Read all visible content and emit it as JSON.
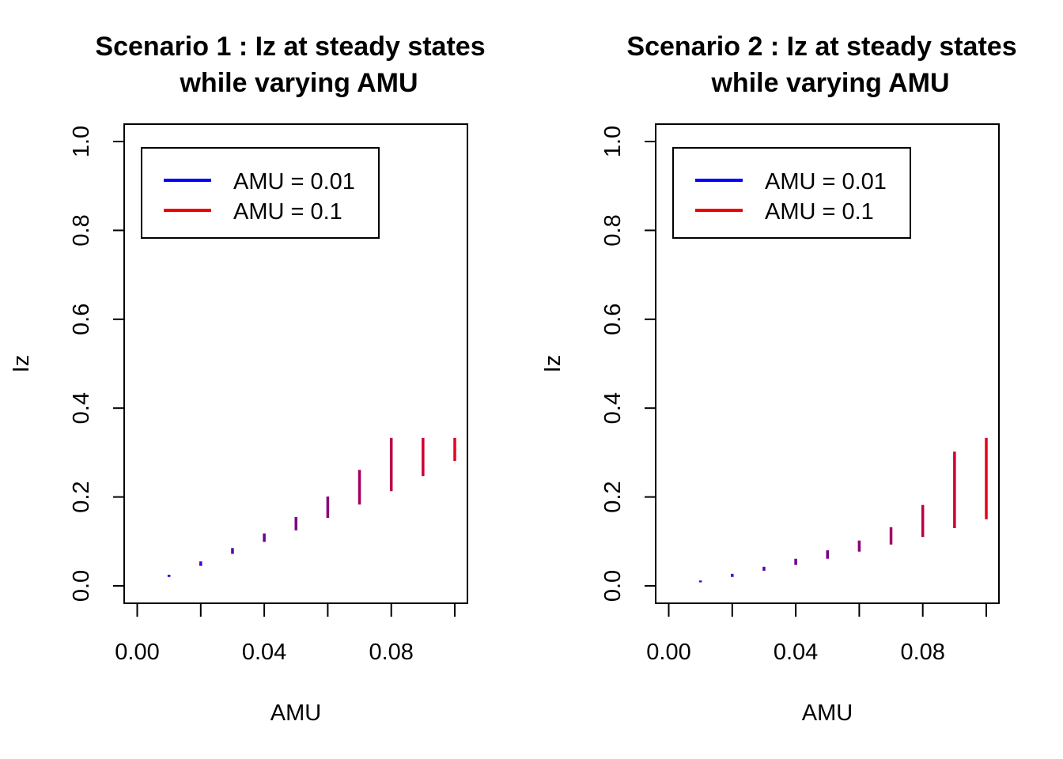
{
  "chart_data": [
    {
      "type": "line",
      "title_line1": "Scenario 1 : Iz at steady states",
      "title_line2": "while varying AMU",
      "xlabel": "AMU",
      "ylabel": "Iz",
      "xlim": [
        0,
        0.1
      ],
      "ylim": [
        0,
        1
      ],
      "xticks": [
        "0.00",
        "0.04",
        "0.08"
      ],
      "xtick_values": [
        0,
        0.02,
        0.04,
        0.06,
        0.08,
        0.1
      ],
      "yticks": [
        "0.0",
        "0.2",
        "0.4",
        "0.6",
        "0.8",
        "1.0"
      ],
      "legend": [
        {
          "label": "AMU = 0.01",
          "color": "#0000ff"
        },
        {
          "label": "AMU = 0.1",
          "color": "#ee0000"
        }
      ],
      "legend_position": "top-left",
      "segments": [
        {
          "x": 0.01,
          "ymin": 0.02,
          "ymax": 0.025,
          "color": "#2200ee"
        },
        {
          "x": 0.02,
          "ymin": 0.045,
          "ymax": 0.055,
          "color": "#4400dd"
        },
        {
          "x": 0.03,
          "ymin": 0.072,
          "ymax": 0.085,
          "color": "#5a00b0"
        },
        {
          "x": 0.04,
          "ymin": 0.099,
          "ymax": 0.118,
          "color": "#6a0098"
        },
        {
          "x": 0.05,
          "ymin": 0.125,
          "ymax": 0.155,
          "color": "#7a0088"
        },
        {
          "x": 0.06,
          "ymin": 0.153,
          "ymax": 0.201,
          "color": "#8c0078"
        },
        {
          "x": 0.07,
          "ymin": 0.183,
          "ymax": 0.261,
          "color": "#a30060"
        },
        {
          "x": 0.08,
          "ymin": 0.213,
          "ymax": 0.333,
          "color": "#bb0048"
        },
        {
          "x": 0.09,
          "ymin": 0.247,
          "ymax": 0.333,
          "color": "#d00034"
        },
        {
          "x": 0.1,
          "ymin": 0.281,
          "ymax": 0.333,
          "color": "#e6001e"
        }
      ]
    },
    {
      "type": "line",
      "title_line1": "Scenario 2 : Iz at steady states",
      "title_line2": "while varying AMU",
      "xlabel": "AMU",
      "ylabel": "Iz",
      "xlim": [
        0,
        0.1
      ],
      "ylim": [
        0,
        1
      ],
      "xticks": [
        "0.00",
        "0.04",
        "0.08"
      ],
      "xtick_values": [
        0,
        0.02,
        0.04,
        0.06,
        0.08,
        0.1
      ],
      "yticks": [
        "0.0",
        "0.2",
        "0.4",
        "0.6",
        "0.8",
        "1.0"
      ],
      "legend": [
        {
          "label": "AMU = 0.01",
          "color": "#0000ff"
        },
        {
          "label": "AMU = 0.1",
          "color": "#ee0000"
        }
      ],
      "legend_position": "top-left",
      "segments": [
        {
          "x": 0.01,
          "ymin": 0.008,
          "ymax": 0.012,
          "color": "#2200ee"
        },
        {
          "x": 0.02,
          "ymin": 0.02,
          "ymax": 0.027,
          "color": "#4400dd"
        },
        {
          "x": 0.03,
          "ymin": 0.034,
          "ymax": 0.043,
          "color": "#5a00b0"
        },
        {
          "x": 0.04,
          "ymin": 0.047,
          "ymax": 0.061,
          "color": "#6a0098"
        },
        {
          "x": 0.05,
          "ymin": 0.061,
          "ymax": 0.08,
          "color": "#7a0088"
        },
        {
          "x": 0.06,
          "ymin": 0.077,
          "ymax": 0.102,
          "color": "#8c0078"
        },
        {
          "x": 0.07,
          "ymin": 0.093,
          "ymax": 0.132,
          "color": "#a30060"
        },
        {
          "x": 0.08,
          "ymin": 0.11,
          "ymax": 0.182,
          "color": "#bb0048"
        },
        {
          "x": 0.09,
          "ymin": 0.13,
          "ymax": 0.302,
          "color": "#d00034"
        },
        {
          "x": 0.1,
          "ymin": 0.15,
          "ymax": 0.333,
          "color": "#e6001e"
        }
      ]
    }
  ]
}
